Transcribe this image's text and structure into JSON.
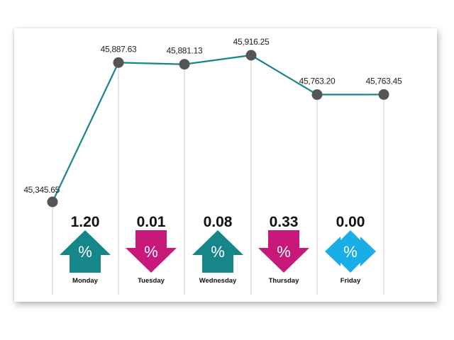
{
  "chart_data": {
    "type": "line",
    "categories": [
      "Monday",
      "Tuesday",
      "Wednesday",
      "Thursday",
      "Friday"
    ],
    "x": [
      "",
      "Monday",
      "Tuesday",
      "Wednesday",
      "Thursday",
      "Friday"
    ],
    "values": [
      45345.65,
      45887.63,
      45881.13,
      45916.25,
      45763.2,
      45763.45
    ],
    "value_labels": [
      "45,345.65",
      "45,887.63",
      "45,881.13",
      "45,916.25",
      "45,763.20",
      "45,763.45"
    ],
    "ylim": [
      45345.65,
      45916.25
    ],
    "title": "",
    "xlabel": "",
    "ylabel": "",
    "grid": false,
    "daily_change": [
      {
        "day": "Monday",
        "percent": "1.20",
        "direction": "up",
        "color": "#17868a"
      },
      {
        "day": "Tuesday",
        "percent": "0.01",
        "direction": "down",
        "color": "#c8197a"
      },
      {
        "day": "Wednesday",
        "percent": "0.08",
        "direction": "up",
        "color": "#17868a"
      },
      {
        "day": "Thursday",
        "percent": "0.33",
        "direction": "down",
        "color": "#c8197a"
      },
      {
        "day": "Friday",
        "percent": "0.00",
        "direction": "unchanged",
        "color": "#1aaee8"
      }
    ],
    "percent_symbol": "%",
    "colors": {
      "line": "#17868a",
      "marker": "#555555",
      "gridline": "#c8c8c8"
    }
  }
}
